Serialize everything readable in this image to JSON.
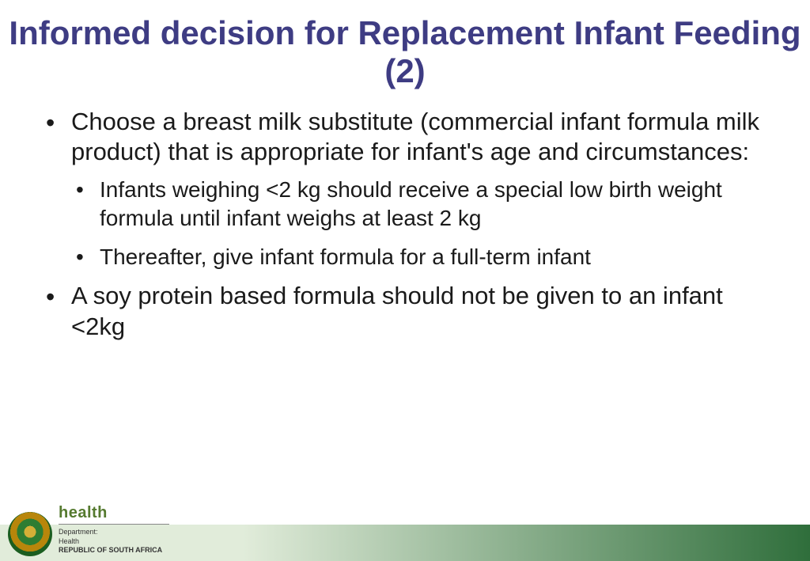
{
  "colors": {
    "title": "#3e3c83",
    "body": "#1a1a1a",
    "footer_gradient_start": "#e1ecda",
    "footer_gradient_end": "#2f6e3b",
    "logo_health": "#557a2f",
    "logo_line": "#888888",
    "logo_sub": "#333333"
  },
  "typography": {
    "title_fontsize": 42,
    "bullet_main_fontsize": 31,
    "bullet_sub_fontsize": 28,
    "logo_health_fontsize": 20,
    "logo_sub_fontsize": 9
  },
  "title": "Informed decision for Replacement Infant Feeding (2)",
  "bullets": [
    {
      "text": "Choose a breast milk substitute (commercial infant formula milk product) that is appropriate for infant's age and circumstances:",
      "sub": [
        "Infants weighing <2 kg should receive a special low birth weight formula until infant weighs at least 2 kg",
        "Thereafter, give infant formula for a full-term infant"
      ]
    },
    {
      "text": "A soy protein based formula should not be given to an infant <2kg",
      "sub": []
    }
  ],
  "footer": {
    "health": "health",
    "dept_label": "Department:",
    "dept_name": "Health",
    "country": "REPUBLIC OF SOUTH AFRICA"
  }
}
